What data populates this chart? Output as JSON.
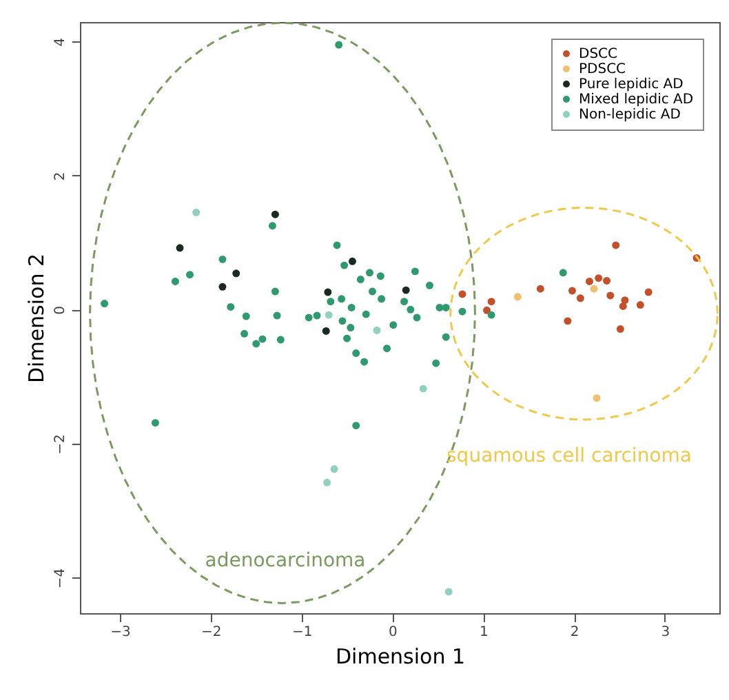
{
  "chart_data": {
    "type": "scatter",
    "xlabel": "Dimension 1",
    "ylabel": "Dimension 2",
    "xlim": [
      -3.44,
      3.6
    ],
    "ylim": [
      -4.53,
      4.29
    ],
    "xticks": [
      -3,
      -2,
      -1,
      0,
      1,
      2,
      3
    ],
    "yticks": [
      -4,
      -2,
      0,
      2,
      4
    ],
    "grid": false,
    "legend": "top right",
    "marker": "circle",
    "series": [
      {
        "name": "DSCC",
        "color": "#c4502a",
        "x": [
          0.77,
          1.04,
          1.09,
          1.63,
          1.93,
          1.98,
          2.07,
          2.17,
          2.27,
          2.36,
          2.4,
          2.46,
          2.51,
          2.54,
          2.56,
          2.73,
          2.82,
          3.35
        ],
        "values": [
          0.23,
          -0.01,
          0.12,
          0.31,
          -0.17,
          0.28,
          0.17,
          0.42,
          0.47,
          0.43,
          0.21,
          0.96,
          -0.29,
          0.05,
          0.14,
          0.07,
          0.26,
          0.77
        ]
      },
      {
        "name": "PDSCC",
        "color": "#f0c070",
        "x": [
          1.38,
          2.22,
          2.25
        ],
        "values": [
          0.19,
          0.31,
          -1.32
        ]
      },
      {
        "name": "Pure lepidic AD",
        "color": "#1a2a20",
        "x": [
          -2.34,
          -1.72,
          -1.87,
          -1.29,
          -0.71,
          -0.73,
          -0.44,
          0.15
        ],
        "values": [
          0.92,
          0.54,
          0.34,
          1.42,
          0.26,
          -0.32,
          0.72,
          0.29
        ]
      },
      {
        "name": "Mixed lepidic AD",
        "color": "#2e9a6e",
        "x": [
          -3.17,
          -2.61,
          -2.39,
          -2.23,
          -1.87,
          -1.78,
          -1.61,
          -1.63,
          -1.5,
          -1.43,
          -1.32,
          -1.29,
          -1.27,
          -1.23,
          -0.92,
          -0.83,
          -0.61,
          -0.68,
          -0.56,
          -0.53,
          -0.55,
          -0.5,
          -0.45,
          -0.46,
          -0.4,
          -0.35,
          -0.31,
          -0.29,
          -0.25,
          -0.22,
          -0.13,
          -0.12,
          -0.06,
          0.01,
          0.13,
          0.2,
          0.25,
          0.27,
          0.41,
          0.48,
          0.52,
          0.59,
          0.59,
          0.77,
          1.88,
          -0.4,
          -0.59,
          1.09
        ],
        "values": [
          0.09,
          -1.69,
          0.42,
          0.52,
          0.75,
          0.04,
          -0.1,
          -0.36,
          -0.51,
          -0.44,
          1.25,
          0.27,
          -0.09,
          -0.45,
          -0.12,
          -0.09,
          0.96,
          0.12,
          0.16,
          0.66,
          -0.17,
          -0.43,
          0.03,
          -0.27,
          -0.65,
          0.45,
          -0.78,
          -0.07,
          0.55,
          0.27,
          0.5,
          0.16,
          -0.58,
          -0.23,
          0.12,
          0.0,
          0.57,
          -0.12,
          0.36,
          -0.8,
          0.03,
          0.03,
          -0.41,
          -0.03,
          0.55,
          -1.73,
          3.95,
          -0.08
        ]
      },
      {
        "name": "Non-lepidic AD",
        "color": "#8fd0c0",
        "x": [
          -2.16,
          -0.7,
          -0.17,
          0.34,
          -0.64,
          -0.72,
          0.62
        ],
        "values": [
          1.45,
          -0.08,
          -0.31,
          -1.18,
          -2.38,
          -2.58,
          -4.21
        ]
      }
    ],
    "annotations": [
      "adenocarcinoma",
      "squamous cell carcinoma"
    ]
  }
}
